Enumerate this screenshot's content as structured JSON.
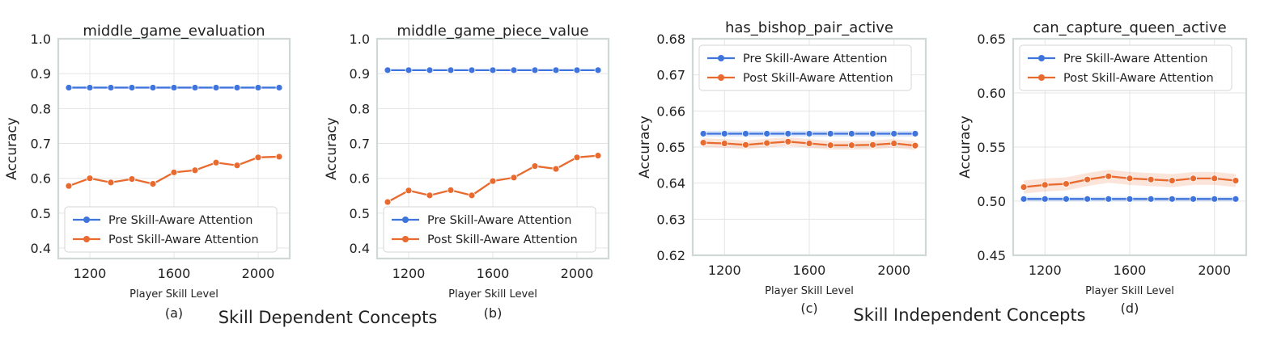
{
  "group_labels": [
    "Skill Dependent Concepts",
    "Skill Independent Concepts"
  ],
  "legend_labels": [
    "Pre Skill-Aware Attention",
    "Post Skill-Aware Attention"
  ],
  "colors": {
    "pre": "#3f74dd",
    "post": "#e86a2e",
    "grid": "#e4e4e4",
    "frame": "#cfd8d6"
  },
  "chart_data": [
    {
      "type": "line",
      "title": "middle_game_evaluation",
      "sublabel": "(a)",
      "xlabel": "Player Skill Level",
      "ylabel": "Accuracy",
      "x": [
        1100,
        1200,
        1300,
        1400,
        1500,
        1600,
        1700,
        1800,
        1900,
        2000,
        2100
      ],
      "xlim": [
        1050,
        2150
      ],
      "xticks": [
        1200,
        1600,
        2000
      ],
      "ylim": [
        0.37,
        1.0
      ],
      "yticks": [
        0.4,
        0.5,
        0.6,
        0.7,
        0.8,
        0.9,
        1.0
      ],
      "ytick_labels": [
        "0.4",
        "0.5",
        "0.6",
        "0.7",
        "0.8",
        "0.9",
        "1.0"
      ],
      "grid": true,
      "legend": "bottom-left",
      "series": [
        {
          "name": "Pre Skill-Aware Attention",
          "values": [
            0.86,
            0.86,
            0.86,
            0.86,
            0.86,
            0.86,
            0.86,
            0.86,
            0.86,
            0.86,
            0.86
          ],
          "band": 0.0
        },
        {
          "name": "Post Skill-Aware Attention",
          "values": [
            0.578,
            0.6,
            0.588,
            0.598,
            0.584,
            0.617,
            0.623,
            0.645,
            0.637,
            0.66,
            0.662
          ],
          "band": 0.0
        }
      ]
    },
    {
      "type": "line",
      "title": "middle_game_piece_value",
      "sublabel": "(b)",
      "xlabel": "Player Skill Level",
      "ylabel": "Accuracy",
      "x": [
        1100,
        1200,
        1300,
        1400,
        1500,
        1600,
        1700,
        1800,
        1900,
        2000,
        2100
      ],
      "xlim": [
        1050,
        2150
      ],
      "xticks": [
        1200,
        1600,
        2000
      ],
      "ylim": [
        0.37,
        1.0
      ],
      "yticks": [
        0.4,
        0.5,
        0.6,
        0.7,
        0.8,
        0.9,
        1.0
      ],
      "ytick_labels": [
        "0.4",
        "0.5",
        "0.6",
        "0.7",
        "0.8",
        "0.9",
        "1.0"
      ],
      "grid": true,
      "legend": "bottom-left",
      "series": [
        {
          "name": "Pre Skill-Aware Attention",
          "values": [
            0.91,
            0.91,
            0.91,
            0.91,
            0.91,
            0.91,
            0.91,
            0.91,
            0.91,
            0.91,
            0.91
          ],
          "band": 0.0
        },
        {
          "name": "Post Skill-Aware Attention",
          "values": [
            0.532,
            0.565,
            0.551,
            0.566,
            0.551,
            0.592,
            0.602,
            0.635,
            0.627,
            0.66,
            0.665
          ],
          "band": 0.0
        }
      ]
    },
    {
      "type": "line",
      "title": "has_bishop_pair_active",
      "sublabel": "(c)",
      "xlabel": "Player Skill Level",
      "ylabel": "Accuracy",
      "x": [
        1100,
        1200,
        1300,
        1400,
        1500,
        1600,
        1700,
        1800,
        1900,
        2000,
        2100
      ],
      "xlim": [
        1050,
        2150
      ],
      "xticks": [
        1200,
        1600,
        2000
      ],
      "ylim": [
        0.62,
        0.68
      ],
      "yticks": [
        0.62,
        0.63,
        0.64,
        0.65,
        0.66,
        0.67,
        0.68
      ],
      "ytick_labels": [
        "0.62",
        "0.63",
        "0.64",
        "0.65",
        "0.66",
        "0.67",
        "0.68"
      ],
      "grid": true,
      "legend": "top-left",
      "series": [
        {
          "name": "Pre Skill-Aware Attention",
          "values": [
            0.6537,
            0.6537,
            0.6537,
            0.6537,
            0.6537,
            0.6537,
            0.6537,
            0.6537,
            0.6537,
            0.6537,
            0.6537
          ],
          "band": 0.0008
        },
        {
          "name": "Post Skill-Aware Attention",
          "values": [
            0.6512,
            0.651,
            0.6506,
            0.6511,
            0.6515,
            0.651,
            0.6505,
            0.6505,
            0.6506,
            0.651,
            0.6504
          ],
          "band": 0.0012
        }
      ]
    },
    {
      "type": "line",
      "title": "can_capture_queen_active",
      "sublabel": "(d)",
      "xlabel": "Player Skill Level",
      "ylabel": "Accuracy",
      "x": [
        1100,
        1200,
        1300,
        1400,
        1500,
        1600,
        1700,
        1800,
        1900,
        2000,
        2100
      ],
      "xlim": [
        1050,
        2150
      ],
      "xticks": [
        1200,
        1600,
        2000
      ],
      "ylim": [
        0.45,
        0.65
      ],
      "yticks": [
        0.45,
        0.5,
        0.55,
        0.6,
        0.65
      ],
      "ytick_labels": [
        "0.45",
        "0.50",
        "0.55",
        "0.60",
        "0.65"
      ],
      "grid": true,
      "legend": "top-left",
      "series": [
        {
          "name": "Pre Skill-Aware Attention",
          "values": [
            0.502,
            0.502,
            0.502,
            0.502,
            0.502,
            0.502,
            0.502,
            0.502,
            0.502,
            0.502,
            0.502
          ],
          "band": 0.002
        },
        {
          "name": "Post Skill-Aware Attention",
          "values": [
            0.513,
            0.515,
            0.516,
            0.52,
            0.523,
            0.521,
            0.52,
            0.519,
            0.521,
            0.521,
            0.519
          ],
          "band": 0.006
        }
      ]
    }
  ]
}
